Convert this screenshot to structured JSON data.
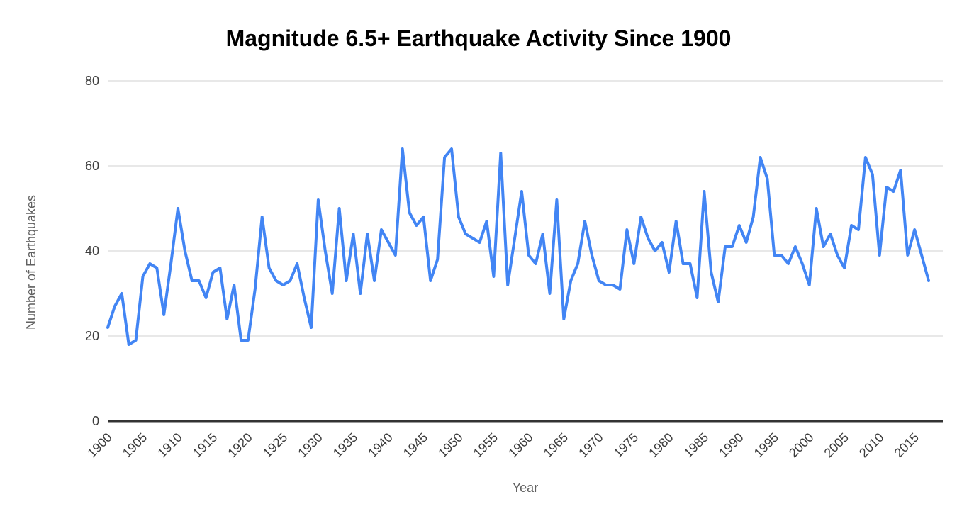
{
  "header": {
    "title": "Magnitude 6.5+ Earthquake Activity Since 1900"
  },
  "chart_data": {
    "type": "line",
    "title": "Magnitude 6.5+ Earthquake Activity Since 1900",
    "xlabel": "Year",
    "ylabel": "Number of Earthquakes",
    "ylim": [
      0,
      80
    ],
    "yticks": [
      0,
      20,
      40,
      60,
      80
    ],
    "xticks": [
      1900,
      1905,
      1910,
      1915,
      1920,
      1925,
      1930,
      1935,
      1940,
      1945,
      1950,
      1955,
      1960,
      1965,
      1970,
      1975,
      1980,
      1985,
      1990,
      1995,
      2000,
      2005,
      2010,
      2015
    ],
    "grid": true,
    "legend": "none",
    "start_year": 1900,
    "end_year": 2017,
    "series": [
      {
        "name": "Number of Earthquakes",
        "values": [
          22,
          27,
          30,
          18,
          19,
          34,
          37,
          36,
          25,
          37,
          50,
          40,
          33,
          33,
          29,
          35,
          36,
          24,
          32,
          19,
          19,
          31,
          48,
          36,
          33,
          32,
          33,
          37,
          29,
          22,
          52,
          40,
          30,
          50,
          33,
          44,
          30,
          44,
          33,
          45,
          42,
          39,
          64,
          49,
          46,
          48,
          33,
          38,
          62,
          64,
          48,
          44,
          43,
          42,
          47,
          34,
          63,
          32,
          43,
          54,
          39,
          37,
          44,
          30,
          52,
          24,
          33,
          37,
          47,
          39,
          33,
          32,
          32,
          31,
          45,
          37,
          48,
          43,
          40,
          42,
          35,
          47,
          37,
          37,
          29,
          54,
          35,
          28,
          41,
          41,
          46,
          42,
          48,
          62,
          57,
          39,
          39,
          37,
          41,
          37,
          32,
          50,
          41,
          44,
          39,
          36,
          46,
          45,
          62,
          58,
          39,
          55,
          54,
          59,
          39,
          45,
          39,
          33
        ]
      }
    ]
  },
  "colors": {
    "line": "#4285f4",
    "grid": "#e0e0e0",
    "baseline": "#333333",
    "tick_text": "#3c3c3c",
    "axis_title_text": "#616161",
    "title_text": "#000000",
    "background": "#ffffff"
  }
}
